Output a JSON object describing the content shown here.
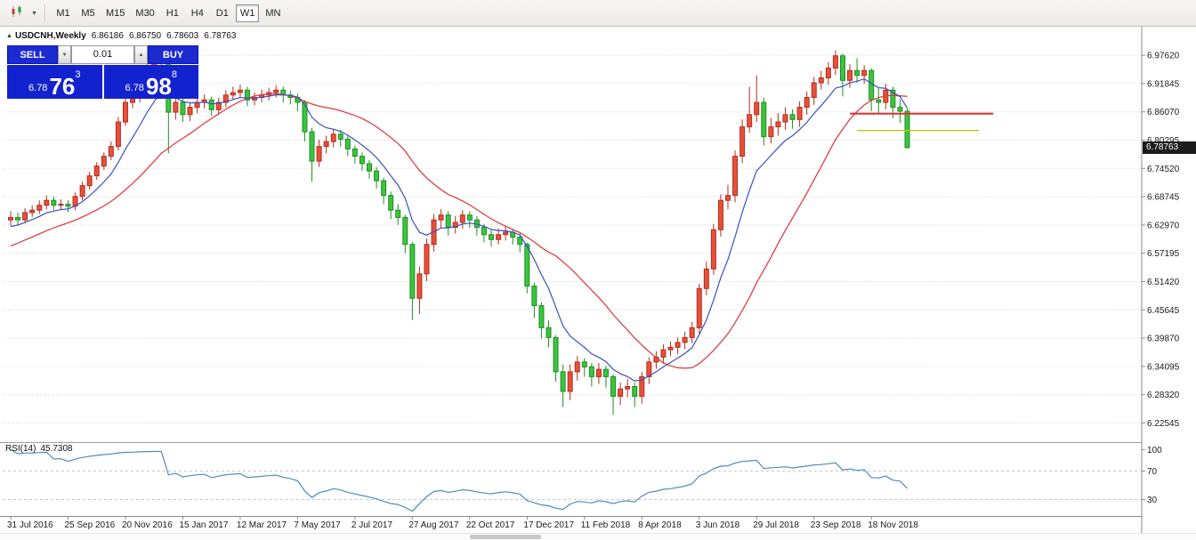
{
  "toolbar": {
    "active_timeframe": "W1",
    "timeframes": [
      {
        "label": "M1"
      },
      {
        "label": "M5"
      },
      {
        "label": "M15"
      },
      {
        "label": "M30"
      },
      {
        "label": "H1"
      },
      {
        "label": "H4"
      },
      {
        "label": "D1"
      },
      {
        "label": "W1",
        "active": true
      },
      {
        "label": "MN"
      }
    ]
  },
  "chart": {
    "symbol_title": "USDCNH,Weekly",
    "ohlc": {
      "open": "6.86186",
      "high": "6.86750",
      "low": "6.78603",
      "close": "6.78763"
    },
    "price_tag": "6.78763",
    "trade_panel": {
      "sell_label": "SELL",
      "buy_label": "BUY",
      "lot_size": "0.01",
      "bid": {
        "prefix": "6.78",
        "big": "76",
        "sup": "3"
      },
      "ask": {
        "prefix": "6.78",
        "big": "98",
        "sup": "8"
      }
    },
    "indicator_label": {
      "name": "RSI(14)",
      "value": "45.7308"
    }
  },
  "chart_data": {
    "type": "candlestick",
    "symbol": "USDCNH",
    "timeframe": "Weekly",
    "price_axis_labels": [
      "6.97620",
      "6.91845",
      "6.86070",
      "6.80295",
      "6.74520",
      "6.68745",
      "6.62970",
      "6.57195",
      "6.51420",
      "6.45645",
      "6.39870",
      "6.34095",
      "6.28320",
      "6.22545"
    ],
    "rsi_axis_labels": [
      "100",
      "70",
      "30"
    ],
    "date_axis": [
      {
        "label": "31 Jul 2016",
        "index": 0
      },
      {
        "label": "25 Sep 2016",
        "index": 8
      },
      {
        "label": "20 Nov 2016",
        "index": 16
      },
      {
        "label": "15 Jan 2017",
        "index": 24
      },
      {
        "label": "12 Mar 2017",
        "index": 32
      },
      {
        "label": "7 May 2017",
        "index": 40
      },
      {
        "label": "2 Jul 2017",
        "index": 48
      },
      {
        "label": "27 Aug 2017",
        "index": 56
      },
      {
        "label": "22 Oct 2017",
        "index": 64
      },
      {
        "label": "17 Dec 2017",
        "index": 72
      },
      {
        "label": "11 Feb 2018",
        "index": 80
      },
      {
        "label": "8 Apr 2018",
        "index": 88
      },
      {
        "label": "3 Jun 2018",
        "index": 96
      },
      {
        "label": "29 Jul 2018",
        "index": 104
      },
      {
        "label": "23 Sep 2018",
        "index": 112
      },
      {
        "label": "18 Nov 2018",
        "index": 120
      }
    ],
    "candles_ohlc": [
      [
        6.64,
        6.658,
        6.628,
        6.645
      ],
      [
        6.645,
        6.655,
        6.63,
        6.64
      ],
      [
        6.64,
        6.664,
        6.633,
        6.655
      ],
      [
        6.655,
        6.67,
        6.646,
        6.66
      ],
      [
        6.66,
        6.68,
        6.652,
        6.67
      ],
      [
        6.67,
        6.69,
        6.662,
        6.68
      ],
      [
        6.68,
        6.688,
        6.66,
        6.67
      ],
      [
        6.67,
        6.682,
        6.66,
        6.672
      ],
      [
        6.672,
        6.68,
        6.656,
        6.668
      ],
      [
        6.668,
        6.696,
        6.66,
        6.688
      ],
      [
        6.688,
        6.718,
        6.68,
        6.71
      ],
      [
        6.71,
        6.738,
        6.702,
        6.73
      ],
      [
        6.73,
        6.758,
        6.722,
        6.75
      ],
      [
        6.75,
        6.778,
        6.742,
        6.77
      ],
      [
        6.77,
        6.8,
        6.762,
        6.79
      ],
      [
        6.79,
        6.85,
        6.782,
        6.84
      ],
      [
        6.84,
        6.89,
        6.832,
        6.88
      ],
      [
        6.88,
        6.9,
        6.868,
        6.89
      ],
      [
        6.89,
        6.93,
        6.88,
        6.92
      ],
      [
        6.92,
        6.958,
        6.91,
        6.95
      ],
      [
        6.95,
        6.972,
        6.94,
        6.96
      ],
      [
        6.96,
        6.985,
        6.95,
        6.97
      ],
      [
        6.97,
        6.975,
        6.776,
        6.86
      ],
      [
        6.86,
        6.892,
        6.845,
        6.88
      ],
      [
        6.88,
        6.888,
        6.84,
        6.855
      ],
      [
        6.855,
        6.88,
        6.842,
        6.87
      ],
      [
        6.87,
        6.892,
        6.858,
        6.88
      ],
      [
        6.88,
        6.896,
        6.868,
        6.885
      ],
      [
        6.885,
        6.892,
        6.852,
        6.865
      ],
      [
        6.865,
        6.89,
        6.855,
        6.88
      ],
      [
        6.88,
        6.905,
        6.87,
        6.895
      ],
      [
        6.895,
        6.912,
        6.885,
        6.9
      ],
      [
        6.9,
        6.916,
        6.89,
        6.905
      ],
      [
        6.905,
        6.912,
        6.872,
        6.885
      ],
      [
        6.885,
        6.9,
        6.874,
        6.89
      ],
      [
        6.89,
        6.906,
        6.88,
        6.895
      ],
      [
        6.895,
        6.91,
        6.884,
        6.9
      ],
      [
        6.9,
        6.915,
        6.89,
        6.905
      ],
      [
        6.905,
        6.912,
        6.88,
        6.895
      ],
      [
        6.895,
        6.904,
        6.876,
        6.89
      ],
      [
        6.89,
        6.898,
        6.862,
        6.88
      ],
      [
        6.88,
        6.885,
        6.8,
        6.82
      ],
      [
        6.82,
        6.828,
        6.718,
        6.76
      ],
      [
        6.76,
        6.804,
        6.748,
        6.79
      ],
      [
        6.79,
        6.812,
        6.776,
        6.8
      ],
      [
        6.8,
        6.826,
        6.788,
        6.815
      ],
      [
        6.815,
        6.824,
        6.79,
        6.805
      ],
      [
        6.805,
        6.812,
        6.77,
        6.785
      ],
      [
        6.785,
        6.792,
        6.755,
        6.77
      ],
      [
        6.77,
        6.778,
        6.74,
        6.755
      ],
      [
        6.755,
        6.762,
        6.724,
        6.74
      ],
      [
        6.74,
        6.748,
        6.704,
        6.72
      ],
      [
        6.72,
        6.726,
        6.672,
        6.69
      ],
      [
        6.69,
        6.698,
        6.642,
        6.66
      ],
      [
        6.66,
        6.672,
        6.63,
        6.645
      ],
      [
        6.645,
        6.65,
        6.572,
        6.59
      ],
      [
        6.59,
        6.595,
        6.436,
        6.48
      ],
      [
        6.48,
        6.545,
        6.448,
        6.53
      ],
      [
        6.53,
        6.602,
        6.515,
        6.59
      ],
      [
        6.59,
        6.652,
        6.575,
        6.64
      ],
      [
        6.64,
        6.662,
        6.624,
        6.65
      ],
      [
        6.65,
        6.658,
        6.608,
        6.625
      ],
      [
        6.625,
        6.648,
        6.612,
        6.635
      ],
      [
        6.635,
        6.66,
        6.622,
        6.65
      ],
      [
        6.65,
        6.658,
        6.624,
        6.64
      ],
      [
        6.64,
        6.648,
        6.608,
        6.625
      ],
      [
        6.625,
        6.632,
        6.594,
        6.61
      ],
      [
        6.61,
        6.62,
        6.585,
        6.6
      ],
      [
        6.6,
        6.622,
        6.59,
        6.61
      ],
      [
        6.61,
        6.626,
        6.598,
        6.615
      ],
      [
        6.615,
        6.622,
        6.59,
        6.605
      ],
      [
        6.605,
        6.612,
        6.574,
        6.59
      ],
      [
        6.59,
        6.594,
        6.49,
        6.505
      ],
      [
        6.505,
        6.512,
        6.44,
        6.465
      ],
      [
        6.465,
        6.472,
        6.398,
        6.42
      ],
      [
        6.42,
        6.435,
        6.38,
        6.4
      ],
      [
        6.4,
        6.405,
        6.31,
        6.33
      ],
      [
        6.33,
        6.345,
        6.258,
        6.29
      ],
      [
        6.29,
        6.345,
        6.272,
        6.33
      ],
      [
        6.33,
        6.362,
        6.312,
        6.35
      ],
      [
        6.35,
        6.358,
        6.32,
        6.34
      ],
      [
        6.34,
        6.348,
        6.3,
        6.32
      ],
      [
        6.32,
        6.348,
        6.305,
        6.335
      ],
      [
        6.335,
        6.342,
        6.298,
        6.32
      ],
      [
        6.32,
        6.325,
        6.242,
        6.28
      ],
      [
        6.28,
        6.308,
        6.262,
        6.295
      ],
      [
        6.295,
        6.315,
        6.278,
        6.3
      ],
      [
        6.3,
        6.308,
        6.258,
        6.28
      ],
      [
        6.28,
        6.33,
        6.265,
        6.32
      ],
      [
        6.32,
        6.36,
        6.305,
        6.35
      ],
      [
        6.35,
        6.372,
        6.336,
        6.36
      ],
      [
        6.36,
        6.386,
        6.346,
        6.375
      ],
      [
        6.375,
        6.392,
        6.362,
        6.38
      ],
      [
        6.38,
        6.4,
        6.366,
        6.39
      ],
      [
        6.39,
        6.412,
        6.376,
        6.4
      ],
      [
        6.4,
        6.432,
        6.388,
        6.42
      ],
      [
        6.42,
        6.51,
        6.408,
        6.5
      ],
      [
        6.5,
        6.555,
        6.486,
        6.54
      ],
      [
        6.54,
        6.632,
        6.528,
        6.62
      ],
      [
        6.62,
        6.692,
        6.606,
        6.68
      ],
      [
        6.68,
        6.712,
        6.662,
        6.69
      ],
      [
        6.69,
        6.782,
        6.676,
        6.77
      ],
      [
        6.77,
        6.845,
        6.756,
        6.83
      ],
      [
        6.83,
        6.912,
        6.818,
        6.855
      ],
      [
        6.855,
        6.935,
        6.84,
        6.88
      ],
      [
        6.88,
        6.89,
        6.792,
        6.81
      ],
      [
        6.81,
        6.848,
        6.796,
        6.83
      ],
      [
        6.83,
        6.858,
        6.812,
        6.84
      ],
      [
        6.84,
        6.87,
        6.824,
        6.855
      ],
      [
        6.855,
        6.866,
        6.826,
        6.845
      ],
      [
        6.845,
        6.882,
        6.83,
        6.87
      ],
      [
        6.87,
        6.902,
        6.855,
        6.89
      ],
      [
        6.89,
        6.932,
        6.875,
        6.92
      ],
      [
        6.92,
        6.944,
        6.906,
        6.93
      ],
      [
        6.93,
        6.962,
        6.916,
        6.95
      ],
      [
        6.95,
        6.986,
        6.936,
        6.975
      ],
      [
        6.975,
        6.98,
        6.892,
        6.925
      ],
      [
        6.925,
        6.958,
        6.91,
        6.945
      ],
      [
        6.945,
        6.97,
        6.92,
        6.935
      ],
      [
        6.935,
        6.956,
        6.918,
        6.945
      ],
      [
        6.945,
        6.95,
        6.862,
        6.885
      ],
      [
        6.885,
        6.908,
        6.856,
        6.88
      ],
      [
        6.88,
        6.918,
        6.866,
        6.905
      ],
      [
        6.905,
        6.912,
        6.848,
        6.87
      ],
      [
        6.87,
        6.886,
        6.838,
        6.862
      ],
      [
        6.86186,
        6.8675,
        6.78603,
        6.78763
      ]
    ],
    "overlays": {
      "ma_fast": {
        "type": "ema",
        "period": 8,
        "color": "#3a50c4"
      },
      "ma_slow": {
        "type": "sma",
        "period": 20,
        "color": "#dd4040"
      }
    },
    "indicator": {
      "type": "rsi",
      "period": 14,
      "value": 45.7308,
      "levels": [
        70,
        30
      ],
      "color": "#4e8cc2"
    },
    "objects": [
      {
        "type": "horizontal_segment",
        "price": 6.857,
        "from_index": 117,
        "to_index": 137,
        "color": "#e03030",
        "width": 2
      },
      {
        "type": "horizontal_segment",
        "price": 6.8225,
        "from_index": 118,
        "to_index": 135,
        "color": "#c2c21a",
        "width": 1.4
      }
    ],
    "colors": {
      "bull": "#e8503a",
      "bull_border": "#b03020",
      "bear": "#3cc440",
      "bear_border": "#1e8f22",
      "background": "#ffffff",
      "grid": "#d6d6d6"
    }
  }
}
